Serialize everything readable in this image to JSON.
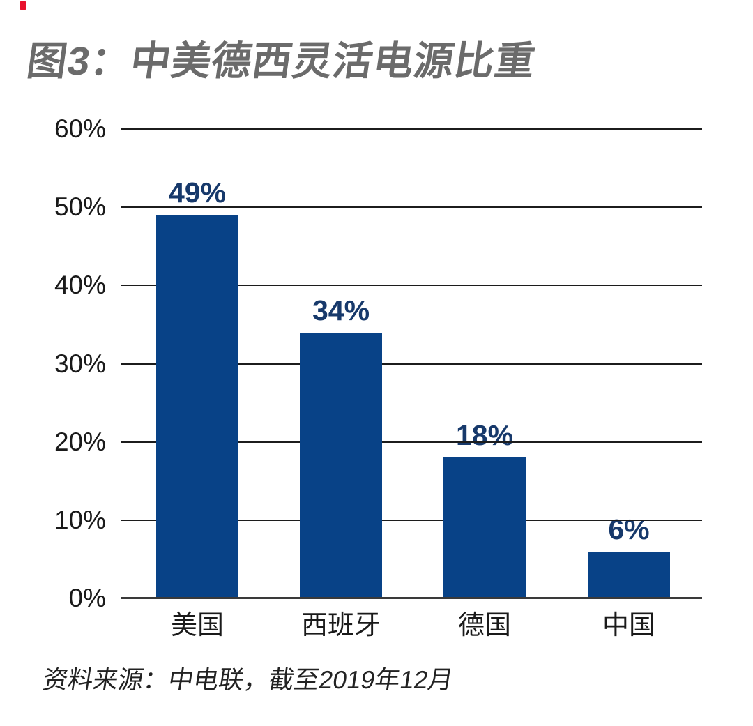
{
  "title": "图3：中美德西灵活电源比重",
  "source": "资料来源：中电联，截至2019年12月",
  "colors": {
    "bar": "#084287",
    "data_label": "#17396B",
    "title": "#6B6B6B",
    "axis_text": "#1A1A1A",
    "gridline": "#1C1C1C",
    "baseline": "#3A3A3A",
    "source_text": "#222222",
    "red_marker": "#E8112D",
    "background": "#FFFFFF"
  },
  "chart_data": {
    "type": "bar",
    "title": "图3：中美德西灵活电源比重",
    "categories": [
      "美国",
      "西班牙",
      "德国",
      "中国"
    ],
    "values": [
      49,
      34,
      18,
      6
    ],
    "data_labels": [
      "49%",
      "34%",
      "18%",
      "6%"
    ],
    "xlabel": "",
    "ylabel": "",
    "ylim": [
      0,
      60
    ],
    "ytick_step": 10,
    "ytick_values": [
      60,
      50,
      40,
      30,
      20,
      10,
      0
    ],
    "yticks": [
      "60%",
      "50%",
      "40%",
      "30%",
      "20%",
      "10%",
      "0%"
    ],
    "grid": true,
    "legend": false,
    "source": "资料来源：中电联，截至2019年12月"
  }
}
